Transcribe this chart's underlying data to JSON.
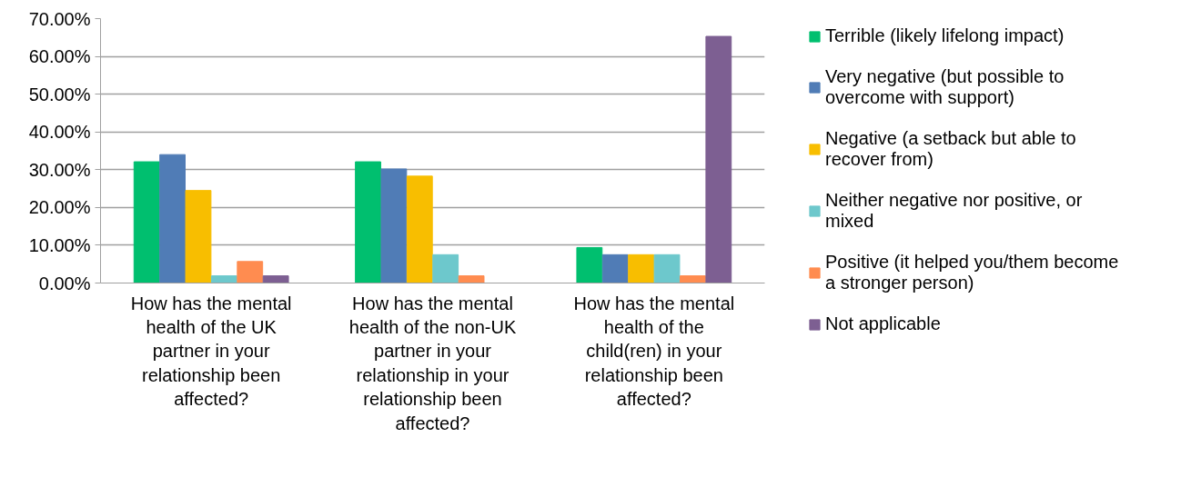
{
  "chart_data": {
    "type": "bar",
    "categories": [
      "How has the mental health of the UK partner in your relationship been affected?",
      "How has the mental health of the non-UK partner in your relationship in your relationship been affected?",
      "How has the mental health of the child(ren) in your relationship been affected?"
    ],
    "series": [
      {
        "name": "Terrible (likely lifelong impact)",
        "color": "#00bf6f",
        "values": [
          32.1,
          32.1,
          9.4
        ]
      },
      {
        "name": "Very negative (but possible to overcome with support)",
        "color": "#507cb6",
        "values": [
          34.0,
          30.2,
          7.5
        ]
      },
      {
        "name": "Negative (a setback but able to recover from)",
        "color": "#f8be00",
        "values": [
          24.5,
          28.3,
          7.5
        ]
      },
      {
        "name": "Neither negative nor positive, or mixed",
        "color": "#6dc8cc",
        "values": [
          1.9,
          7.5,
          7.5
        ]
      },
      {
        "name": "Positive (it helped you/them become a stronger person)",
        "color": "#ff8c50",
        "values": [
          5.7,
          1.9,
          1.9
        ]
      },
      {
        "name": "Not applicable",
        "color": "#7d5f92",
        "values": [
          1.9,
          0,
          65.3
        ]
      }
    ],
    "ylim": [
      0,
      70
    ],
    "yticks": [
      {
        "value": 0,
        "label": "0.00%"
      },
      {
        "value": 10,
        "label": "10.00%"
      },
      {
        "value": 20,
        "label": "20.00%"
      },
      {
        "value": 30,
        "label": "30.00%"
      },
      {
        "value": 40,
        "label": "40.00%"
      },
      {
        "value": 50,
        "label": "50.00%"
      },
      {
        "value": 60,
        "label": "60.00%"
      },
      {
        "value": 70,
        "label": "70.00%"
      }
    ],
    "grid": "y",
    "legend": "right"
  }
}
